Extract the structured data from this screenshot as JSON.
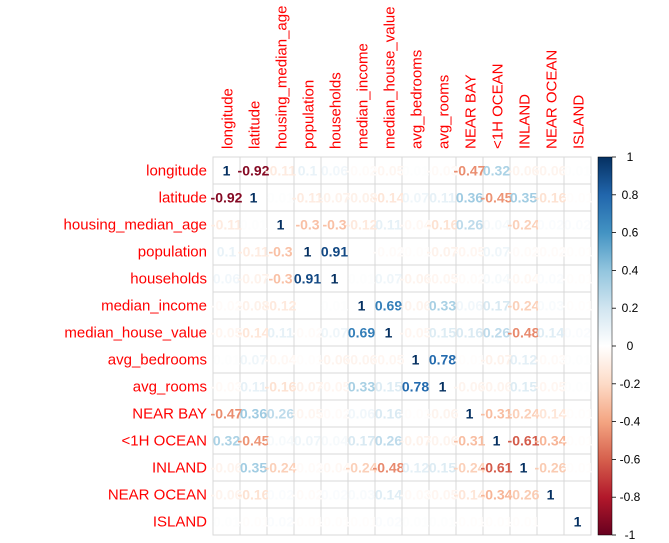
{
  "chart_data": {
    "type": "heatmap",
    "variables": [
      "longitude",
      "latitude",
      "housing_median_age",
      "population",
      "households",
      "median_income",
      "median_house_value",
      "avg_bedrooms",
      "avg_rooms",
      "NEAR BAY",
      "<1H OCEAN",
      "INLAND",
      "NEAR OCEAN",
      "ISLAND"
    ],
    "matrix": [
      [
        1,
        -0.92,
        -0.11,
        0.1,
        0.06,
        -0.02,
        -0.05,
        0.01,
        -0.03,
        -0.47,
        0.32,
        -0.06,
        -0.06,
        0.01
      ],
      [
        -0.92,
        1,
        0.01,
        -0.11,
        -0.07,
        -0.08,
        -0.14,
        0.07,
        0.11,
        0.36,
        -0.45,
        0.35,
        -0.16,
        -0.01
      ],
      [
        -0.11,
        0.01,
        1,
        -0.3,
        -0.3,
        -0.12,
        0.11,
        -0.04,
        -0.16,
        0.26,
        0.04,
        -0.24,
        0.02,
        0.02
      ],
      [
        0.1,
        -0.11,
        -0.3,
        1,
        0.91,
        0.0,
        -0.02,
        -0.01,
        -0.07,
        -0.05,
        0.07,
        -0.02,
        -0.02,
        -0.01
      ],
      [
        0.06,
        -0.07,
        -0.3,
        0.91,
        1,
        0.01,
        0.07,
        -0.06,
        -0.05,
        -0.02,
        0.04,
        -0.04,
        0.02,
        -0.01
      ],
      [
        -0.02,
        -0.08,
        -0.12,
        0.0,
        0.01,
        1,
        0.69,
        -0.06,
        0.33,
        0.06,
        0.17,
        -0.24,
        0.03,
        -0.01
      ],
      [
        -0.05,
        -0.14,
        0.11,
        -0.02,
        0.07,
        0.69,
        1,
        -0.05,
        0.15,
        0.16,
        0.26,
        -0.48,
        0.14,
        0.02
      ],
      [
        0.01,
        0.07,
        -0.04,
        -0.01,
        -0.06,
        -0.06,
        -0.05,
        1,
        0.78,
        -0.01,
        -0.07,
        0.12,
        -0.03,
        0.01
      ],
      [
        -0.03,
        0.11,
        -0.16,
        -0.07,
        -0.05,
        0.33,
        0.15,
        0.78,
        1,
        -0.06,
        -0.06,
        0.15,
        -0.05,
        0.01
      ],
      [
        -0.47,
        0.36,
        0.26,
        -0.05,
        -0.02,
        0.06,
        0.16,
        -0.01,
        -0.06,
        1,
        -0.31,
        -0.24,
        -0.14,
        -0.01
      ],
      [
        0.32,
        -0.45,
        0.04,
        0.07,
        0.04,
        0.17,
        0.26,
        -0.07,
        -0.06,
        -0.31,
        1,
        -0.61,
        -0.34,
        -0.01
      ],
      [
        -0.06,
        0.35,
        -0.24,
        -0.02,
        -0.04,
        -0.24,
        -0.48,
        0.12,
        0.15,
        -0.24,
        -0.61,
        1,
        -0.26,
        -0.01
      ],
      [
        -0.06,
        -0.16,
        0.02,
        -0.02,
        0.02,
        0.03,
        0.14,
        -0.03,
        -0.05,
        -0.14,
        -0.34,
        -0.26,
        1,
        0.0
      ],
      [
        0.01,
        -0.01,
        0.02,
        -0.01,
        -0.01,
        -0.01,
        0.02,
        0.01,
        0.01,
        -0.01,
        -0.01,
        -0.01,
        0.0,
        1
      ]
    ],
    "legend": {
      "ticks": [
        "1",
        "0.8",
        "0.6",
        "0.4",
        "0.2",
        "0",
        "-0.2",
        "-0.4",
        "-0.6",
        "-0.8",
        "-1"
      ],
      "range": [
        -1,
        1
      ],
      "position": "right"
    },
    "colors": {
      "negative": "#67001F",
      "neutral": "#FFFFFF",
      "positive": "#053061",
      "label_color": "#FF0000",
      "grid": "#D9D9D9"
    },
    "grid": true
  }
}
